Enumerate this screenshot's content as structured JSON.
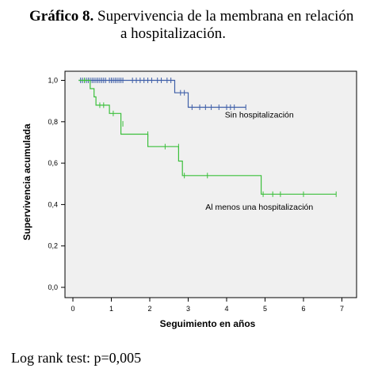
{
  "title": {
    "prefix": "Gráfico 8.",
    "line1": " Supervivencia de la membrana en relación",
    "line2": "a hospitalización."
  },
  "footnote": "Log rank test: p=0,005",
  "chart_data": {
    "type": "line",
    "subtype": "kaplan-meier-step",
    "xlabel": "Seguimiento en años",
    "ylabel": "Supervivencia acumulada",
    "xlim": [
      0,
      7
    ],
    "ylim": [
      0,
      1
    ],
    "x_ticks": [
      "0",
      "1",
      "2",
      "3",
      "4",
      "5",
      "6",
      "7"
    ],
    "y_ticks": [
      "0,0",
      "0,2",
      "0,4",
      "0,6",
      "0,8",
      "1,0"
    ],
    "grid": false,
    "background_color": "#f0f0f0",
    "series": [
      {
        "name": "Sin hospitalización",
        "color": "#3f5fa8",
        "steps": [
          [
            0.15,
            1.0
          ],
          [
            2.65,
            1.0
          ],
          [
            2.65,
            0.94
          ],
          [
            3.0,
            0.94
          ],
          [
            3.0,
            0.87
          ],
          [
            4.5,
            0.87
          ]
        ],
        "censored": [
          [
            0.2,
            1.0
          ],
          [
            0.25,
            1.0
          ],
          [
            0.3,
            1.0
          ],
          [
            0.35,
            1.0
          ],
          [
            0.4,
            1.0
          ],
          [
            0.45,
            1.0
          ],
          [
            0.5,
            1.0
          ],
          [
            0.55,
            1.0
          ],
          [
            0.6,
            1.0
          ],
          [
            0.65,
            1.0
          ],
          [
            0.7,
            1.0
          ],
          [
            0.75,
            1.0
          ],
          [
            0.8,
            1.0
          ],
          [
            0.85,
            1.0
          ],
          [
            0.95,
            1.0
          ],
          [
            1.0,
            1.0
          ],
          [
            1.05,
            1.0
          ],
          [
            1.1,
            1.0
          ],
          [
            1.15,
            1.0
          ],
          [
            1.2,
            1.0
          ],
          [
            1.25,
            1.0
          ],
          [
            1.3,
            1.0
          ],
          [
            1.55,
            1.0
          ],
          [
            1.65,
            1.0
          ],
          [
            1.75,
            1.0
          ],
          [
            1.85,
            1.0
          ],
          [
            1.95,
            1.0
          ],
          [
            2.05,
            1.0
          ],
          [
            2.2,
            1.0
          ],
          [
            2.3,
            1.0
          ],
          [
            2.45,
            1.0
          ],
          [
            2.55,
            1.0
          ],
          [
            2.8,
            0.94
          ],
          [
            2.9,
            0.94
          ],
          [
            3.1,
            0.87
          ],
          [
            3.3,
            0.87
          ],
          [
            3.45,
            0.87
          ],
          [
            3.6,
            0.87
          ],
          [
            3.8,
            0.87
          ],
          [
            4.0,
            0.87
          ],
          [
            4.1,
            0.87
          ],
          [
            4.2,
            0.87
          ],
          [
            4.5,
            0.87
          ]
        ],
        "label": "Sin hospitalización",
        "label_at": [
          4.85,
          0.82
        ]
      },
      {
        "name": "Al menos una hospitalización",
        "color": "#3bbf3b",
        "steps": [
          [
            0.15,
            1.0
          ],
          [
            0.45,
            1.0
          ],
          [
            0.45,
            0.96
          ],
          [
            0.55,
            0.96
          ],
          [
            0.55,
            0.92
          ],
          [
            0.6,
            0.92
          ],
          [
            0.6,
            0.88
          ],
          [
            0.95,
            0.88
          ],
          [
            0.95,
            0.84
          ],
          [
            1.25,
            0.84
          ],
          [
            1.25,
            0.74
          ],
          [
            1.95,
            0.74
          ],
          [
            1.95,
            0.68
          ],
          [
            2.75,
            0.68
          ],
          [
            2.75,
            0.61
          ],
          [
            2.85,
            0.61
          ],
          [
            2.85,
            0.54
          ],
          [
            4.9,
            0.54
          ],
          [
            4.9,
            0.45
          ],
          [
            6.85,
            0.45
          ]
        ],
        "censored": [
          [
            0.3,
            1.0
          ],
          [
            0.7,
            0.88
          ],
          [
            0.8,
            0.88
          ],
          [
            1.05,
            0.84
          ],
          [
            1.3,
            0.79
          ],
          [
            1.95,
            0.74
          ],
          [
            2.4,
            0.68
          ],
          [
            2.75,
            0.68
          ],
          [
            2.9,
            0.54
          ],
          [
            3.5,
            0.54
          ],
          [
            4.95,
            0.45
          ],
          [
            5.2,
            0.45
          ],
          [
            5.4,
            0.45
          ],
          [
            6.0,
            0.45
          ],
          [
            6.85,
            0.45
          ]
        ],
        "label": "Al menos una hospitalización",
        "label_at": [
          4.85,
          0.375
        ]
      }
    ]
  }
}
